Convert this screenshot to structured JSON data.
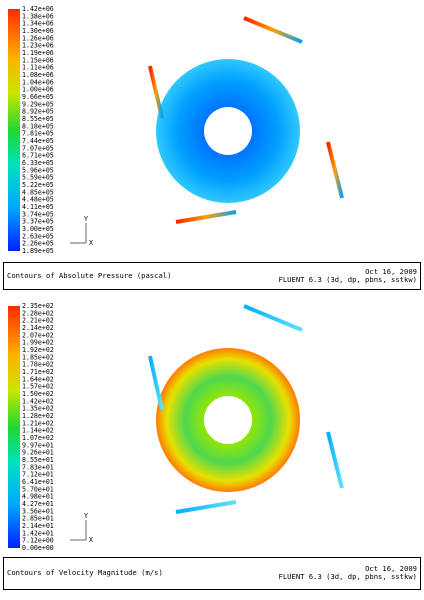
{
  "panels": [
    {
      "colorbar_labels": [
        "1.42e+06",
        "1.38e+06",
        "1.34e+06",
        "1.30e+06",
        "1.26e+06",
        "1.23e+06",
        "1.19e+06",
        "1.15e+06",
        "1.11e+06",
        "1.08e+06",
        "1.04e+06",
        "1.00e+06",
        "9.66e+05",
        "9.29e+05",
        "8.92e+05",
        "8.55e+05",
        "8.18e+05",
        "7.81e+05",
        "7.44e+05",
        "7.07e+05",
        "6.71e+05",
        "6.33e+05",
        "5.96e+05",
        "5.59e+05",
        "5.22e+05",
        "4.85e+05",
        "4.48e+05",
        "4.11e+05",
        "3.74e+05",
        "3.37e+05",
        "3.00e+05",
        "2.63e+05",
        "2.26e+05",
        "1.89e+05"
      ],
      "axis_labels": [
        "Y",
        "X"
      ],
      "caption": "Contours of Absolute Pressure (pascal)",
      "date": "Oct 16, 2009",
      "software": "FLUENT 6.3 (3d, dp, pbns, sstkw)"
    },
    {
      "colorbar_labels": [
        "2.35e+02",
        "2.28e+02",
        "2.21e+02",
        "2.14e+02",
        "2.07e+02",
        "1.99e+02",
        "1.92e+02",
        "1.85e+02",
        "1.78e+02",
        "1.71e+02",
        "1.64e+02",
        "1.57e+02",
        "1.50e+02",
        "1.42e+02",
        "1.35e+02",
        "1.28e+02",
        "1.21e+02",
        "1.14e+02",
        "1.07e+02",
        "9.97e+01",
        "9.26e+01",
        "8.55e+01",
        "7.83e+01",
        "7.12e+01",
        "6.41e+01",
        "5.70e+01",
        "4.98e+01",
        "4.27e+01",
        "3.56e+01",
        "2.85e+01",
        "2.14e+01",
        "1.42e+01",
        "7.12e+00",
        "0.00e+00"
      ],
      "axis_labels": [
        "Y",
        "X"
      ],
      "caption": "Contours of Velocity Magnitude (m/s)",
      "date": "Oct 16, 2009",
      "software": "FLUENT 6.3 (3d, dp, pbns, sstkw)"
    }
  ]
}
